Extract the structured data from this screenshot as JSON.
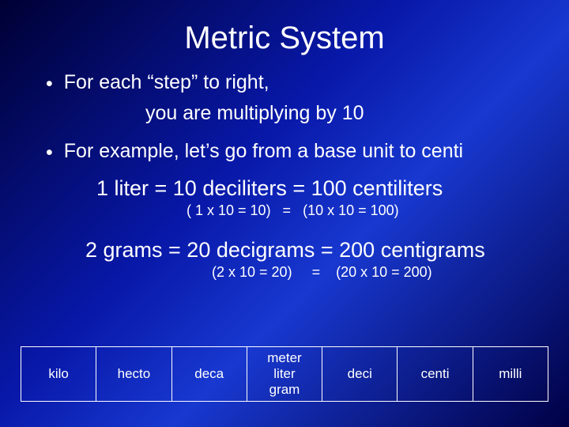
{
  "title": "Metric System",
  "bullets": {
    "b1_line1": "For each “step” to right,",
    "b1_line2": "you are multiplying by 10",
    "b2": "For example, let’s go from a base unit to centi"
  },
  "examples": {
    "ex1_main": "1 liter = 10 deciliters = 100 centiliters",
    "ex1_sub": "( 1 x 10 = 10)   =   (10 x 10 = 100)",
    "ex2_main": "2 grams = 20 decigrams = 200 centigrams",
    "ex2_sub": "(2 x 10 = 20)     =    (20 x 10 = 200)"
  },
  "prefixes": {
    "p0": "kilo",
    "p1": "hecto",
    "p2": "deca",
    "base1": "meter",
    "base2": "liter",
    "base3": "gram",
    "p4": "deci",
    "p5": "centi",
    "p6": "milli"
  },
  "styling": {
    "text_color": "#ffffff",
    "title_fontsize": 40,
    "body_fontsize": 25,
    "example_fontsize": 27,
    "sub_fontsize": 18,
    "table_fontsize": 17,
    "border_color": "#ffffff",
    "bg_gradient_stops": [
      "#000033",
      "#0818a8",
      "#1838d0",
      "#000044"
    ]
  }
}
